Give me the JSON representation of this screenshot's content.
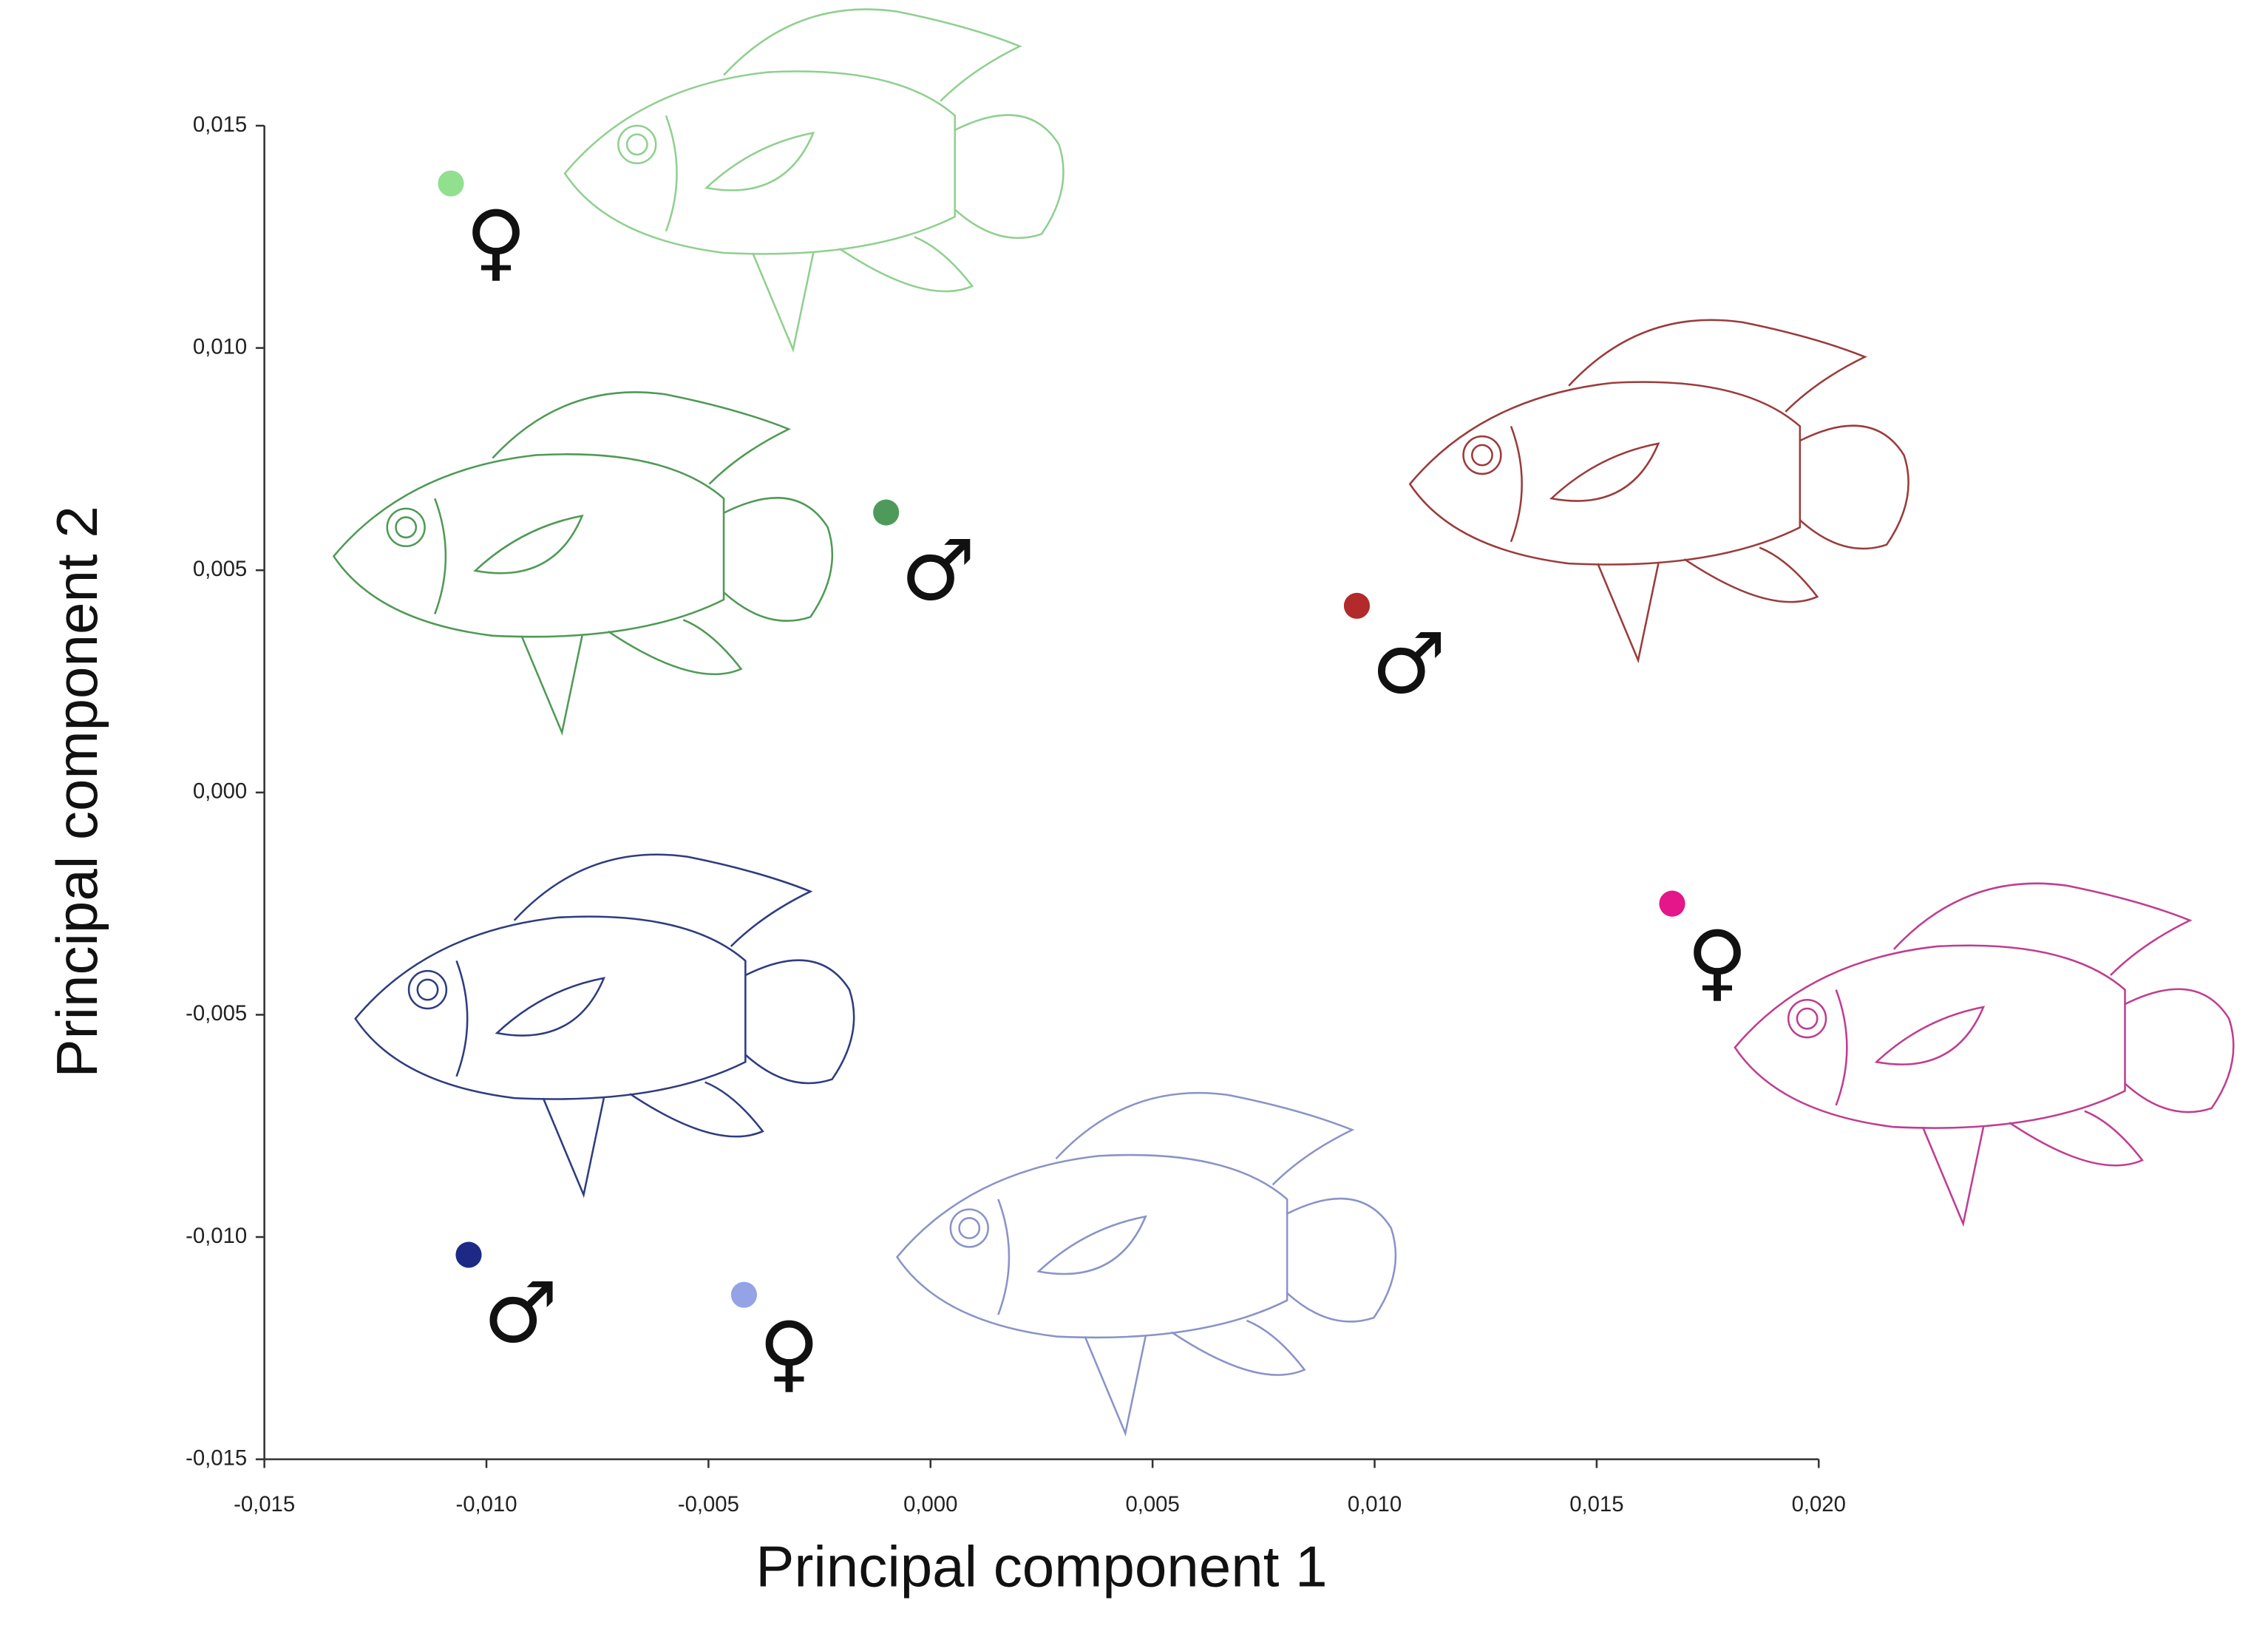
{
  "chart_data": {
    "type": "scatter",
    "xlabel": "Principal component 1",
    "ylabel": "Principal component 2",
    "x": [
      -0.0108,
      -0.001,
      0.0096,
      0.0167,
      -0.0104,
      -0.0042
    ],
    "values": [
      0.0137,
      0.0063,
      0.0042,
      -0.0025,
      -0.0104,
      -0.0113
    ],
    "colors": [
      "#90e090",
      "#4e9a5a",
      "#b22a2a",
      "#e5158a",
      "#1c2a86",
      "#93a3e6"
    ],
    "labels": [
      "♀",
      "♂",
      "♂",
      "♀",
      "♂",
      "♀"
    ],
    "xlim": [
      -0.015,
      0.02
    ],
    "ylim": [
      -0.015,
      0.015
    ],
    "xticks": [
      {
        "value": -0.015,
        "label": "-0,015"
      },
      {
        "value": -0.01,
        "label": "-0,010"
      },
      {
        "value": -0.005,
        "label": "-0,005"
      },
      {
        "value": 0,
        "label": "0,000"
      },
      {
        "value": 0.005,
        "label": "0,005"
      },
      {
        "value": 0.01,
        "label": "0,010"
      },
      {
        "value": 0.015,
        "label": "0,015"
      },
      {
        "value": 0.02,
        "label": "0,020"
      }
    ],
    "yticks": [
      {
        "value": -0.015,
        "label": "-0,015"
      },
      {
        "value": -0.01,
        "label": "-0,010"
      },
      {
        "value": -0.005,
        "label": "-0,005"
      },
      {
        "value": 0,
        "label": "0,000"
      },
      {
        "value": 0.005,
        "label": "0,005"
      },
      {
        "value": 0.01,
        "label": "0,010"
      },
      {
        "value": 0.015,
        "label": "0,015"
      }
    ]
  }
}
